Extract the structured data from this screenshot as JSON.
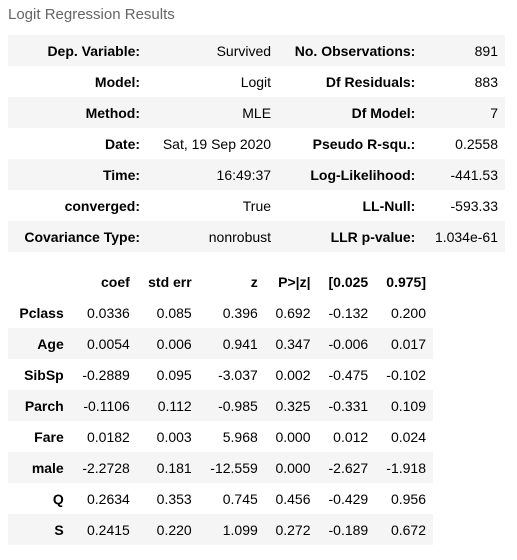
{
  "caption": "Logit Regression Results",
  "summary": {
    "rows": [
      [
        "Dep. Variable:",
        "Survived",
        "No. Observations:",
        "891"
      ],
      [
        "Model:",
        "Logit",
        "Df Residuals:",
        "883"
      ],
      [
        "Method:",
        "MLE",
        "Df Model:",
        "7"
      ],
      [
        "Date:",
        "Sat, 19 Sep 2020",
        "Pseudo R-squ.:",
        "0.2558"
      ],
      [
        "Time:",
        "16:49:37",
        "Log-Likelihood:",
        "-441.53"
      ],
      [
        "converged:",
        "True",
        "LL-Null:",
        "-593.33"
      ],
      [
        "Covariance Type:",
        "nonrobust",
        "LLR p-value:",
        "1.034e-61"
      ]
    ]
  },
  "coef": {
    "headers": [
      "",
      "coef",
      "std err",
      "z",
      "P>|z|",
      "[0.025",
      "0.975]"
    ],
    "rows": [
      [
        "Pclass",
        "0.0336",
        "0.085",
        "0.396",
        "0.692",
        "-0.132",
        "0.200"
      ],
      [
        "Age",
        "0.0054",
        "0.006",
        "0.941",
        "0.347",
        "-0.006",
        "0.017"
      ],
      [
        "SibSp",
        "-0.2889",
        "0.095",
        "-3.037",
        "0.002",
        "-0.475",
        "-0.102"
      ],
      [
        "Parch",
        "-0.1106",
        "0.112",
        "-0.985",
        "0.325",
        "-0.331",
        "0.109"
      ],
      [
        "Fare",
        "0.0182",
        "0.003",
        "5.968",
        "0.000",
        "0.012",
        "0.024"
      ],
      [
        "male",
        "-2.2728",
        "0.181",
        "-12.559",
        "0.000",
        "-2.627",
        "-1.918"
      ],
      [
        "Q",
        "0.2634",
        "0.353",
        "0.745",
        "0.456",
        "-0.429",
        "0.956"
      ],
      [
        "S",
        "0.2415",
        "0.220",
        "1.099",
        "0.272",
        "-0.189",
        "0.672"
      ]
    ]
  }
}
